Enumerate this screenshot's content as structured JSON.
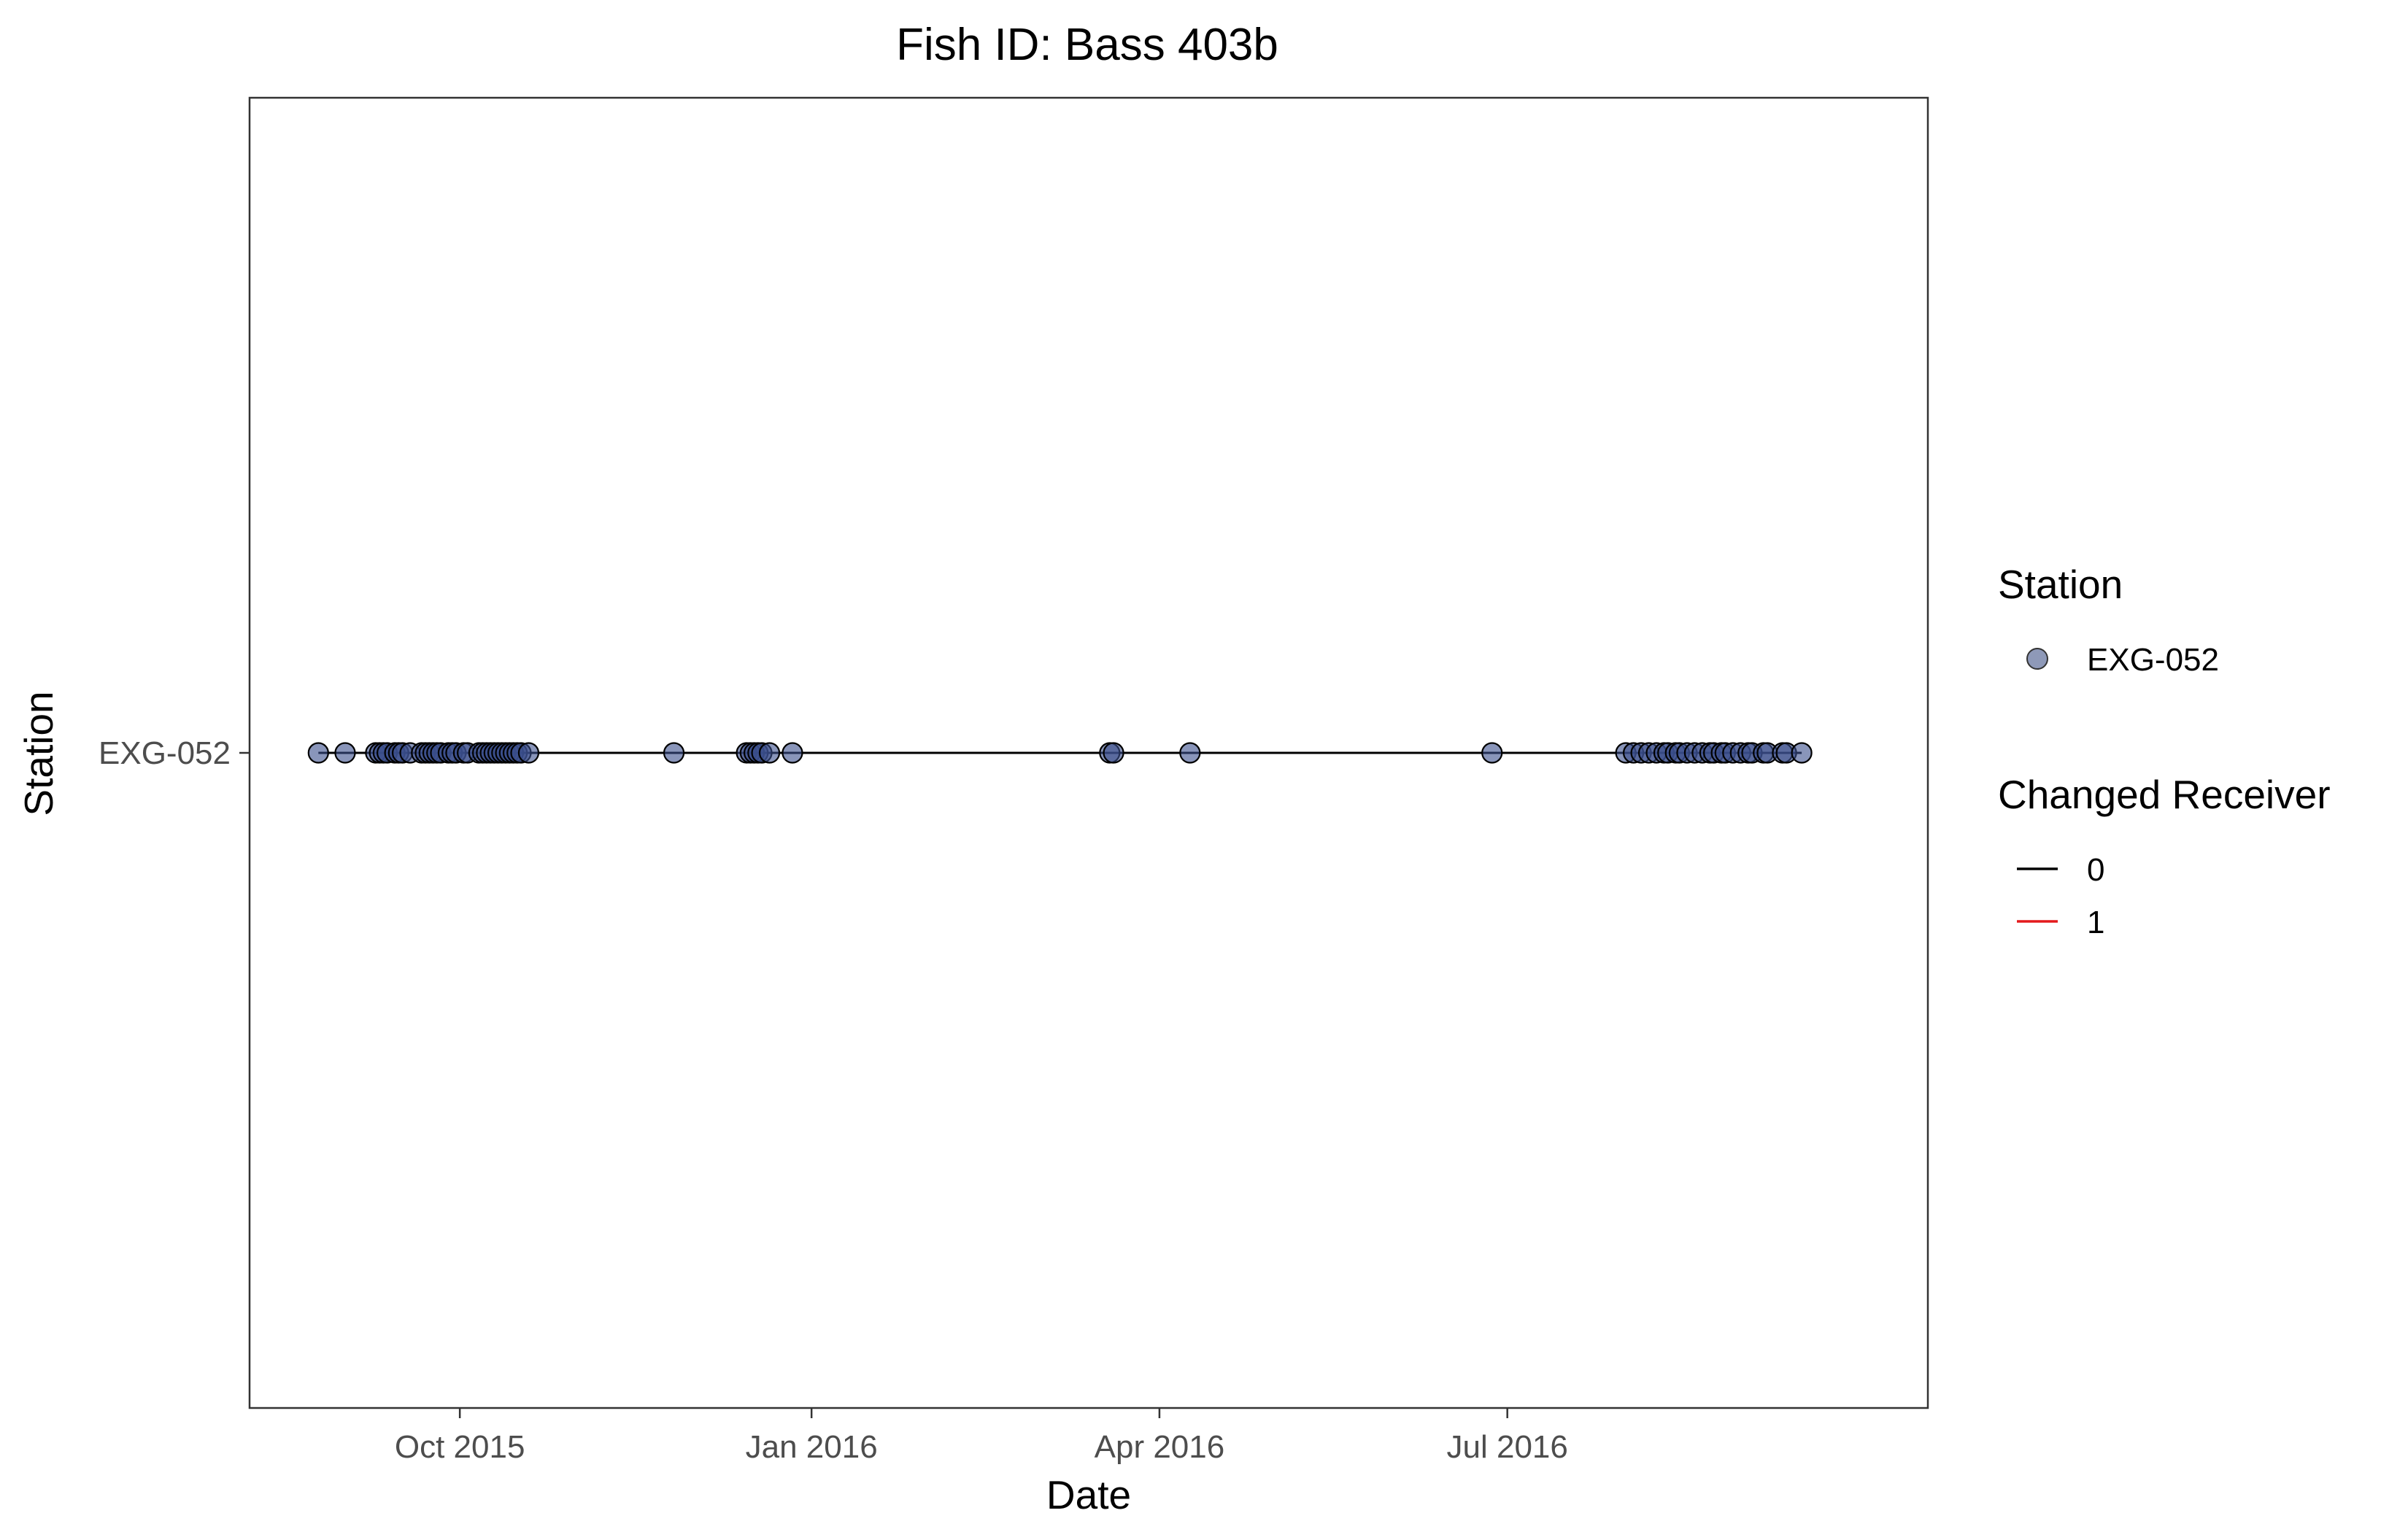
{
  "chart_data": {
    "type": "scatter",
    "title": "Fish ID: Bass 403b",
    "xlabel": "Date",
    "ylabel": "Station",
    "x_axis_type": "date",
    "xlim": [
      "2015-08-07",
      "2016-10-19"
    ],
    "x_ticks": [
      {
        "date": "2015-10-01",
        "label": "Oct 2015"
      },
      {
        "date": "2016-01-01",
        "label": "Jan 2016"
      },
      {
        "date": "2016-04-01",
        "label": "Apr 2016"
      },
      {
        "date": "2016-07-01",
        "label": "Jul 2016"
      }
    ],
    "categories": [
      "EXG-052"
    ],
    "grid": false,
    "series": [
      {
        "station": "EXG-052",
        "color": "#3B4F8C",
        "x": [
          "2015-08-25",
          "2015-09-01",
          "2015-09-09",
          "2015-09-10",
          "2015-09-11",
          "2015-09-12",
          "2015-09-14",
          "2015-09-15",
          "2015-09-16",
          "2015-09-18",
          "2015-09-21",
          "2015-09-22",
          "2015-09-23",
          "2015-09-24",
          "2015-09-25",
          "2015-09-26",
          "2015-09-28",
          "2015-09-29",
          "2015-09-30",
          "2015-10-02",
          "2015-10-03",
          "2015-10-06",
          "2015-10-07",
          "2015-10-08",
          "2015-10-09",
          "2015-10-10",
          "2015-10-11",
          "2015-10-12",
          "2015-10-13",
          "2015-10-14",
          "2015-10-15",
          "2015-10-16",
          "2015-10-17",
          "2015-10-19",
          "2015-11-26",
          "2015-12-15",
          "2015-12-16",
          "2015-12-17",
          "2015-12-18",
          "2015-12-19",
          "2015-12-21",
          "2015-12-27",
          "2016-03-19",
          "2016-03-20",
          "2016-04-09",
          "2016-06-27",
          "2016-08-01",
          "2016-08-03",
          "2016-08-05",
          "2016-08-07",
          "2016-08-09",
          "2016-08-11",
          "2016-08-12",
          "2016-08-14",
          "2016-08-15",
          "2016-08-17",
          "2016-08-19",
          "2016-08-21",
          "2016-08-23",
          "2016-08-24",
          "2016-08-26",
          "2016-08-27",
          "2016-08-29",
          "2016-08-31",
          "2016-09-02",
          "2016-09-03",
          "2016-09-06",
          "2016-09-07",
          "2016-09-11",
          "2016-09-12",
          "2016-09-16"
        ]
      }
    ],
    "legend": {
      "placement": "right",
      "station_title": "Station",
      "station_entries": [
        {
          "label": "EXG-052",
          "color": "#8E99B8"
        }
      ],
      "receiver_title": "Changed Receiver",
      "receiver_entries": [
        {
          "label": "0",
          "color": "#000000"
        },
        {
          "label": "1",
          "color": "#E41A1C"
        }
      ]
    }
  }
}
